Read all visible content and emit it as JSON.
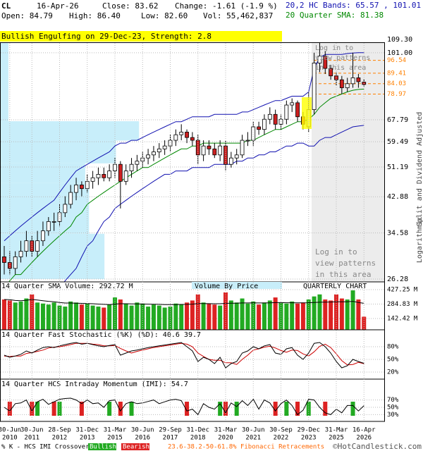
{
  "header": {
    "symbol": "CL",
    "date": "16-Apr-26",
    "close": "Close: 83.62",
    "change": "Change: -1.61 (-1.9 %)",
    "open": "Open: 84.79",
    "high": "High: 86.40",
    "low": "Low: 82.60",
    "volume": "Vol: 55,462,837"
  },
  "chart_data": {
    "type": "candlestick",
    "banner": "Bullish Engulfing on 29-Dec-23, Strength: 2.8",
    "chart_label": "QUARTERLY CHART",
    "side_labels": [
      "Split and Dividend Adjusted",
      "Logarithmic"
    ],
    "login_note": [
      "Log in to",
      "view patterns",
      "in this area"
    ],
    "x_dates": [
      null,
      "30-Jun",
      null,
      null,
      null,
      "30-Jun",
      null,
      null,
      null,
      null,
      "28-Sep",
      null,
      null,
      null,
      null,
      "31-Dec",
      null,
      null,
      null,
      null,
      "31-Mar",
      null,
      null,
      null,
      null,
      "30-Jun",
      null,
      null,
      null,
      null,
      "29-Sep",
      null,
      null,
      null,
      null,
      "31-Dec",
      null,
      null,
      null,
      null,
      "31-Mar",
      null,
      null,
      null,
      null,
      "30-Jun",
      null,
      null,
      null,
      null,
      "30-Sep",
      null,
      null,
      null,
      null,
      "29-Dec",
      null,
      null,
      null,
      null,
      "31-Mar",
      null,
      null,
      null,
      null,
      "16-Apr"
    ],
    "x_years": [
      null,
      "2010",
      null,
      null,
      null,
      "2011",
      null,
      null,
      null,
      null,
      "2012",
      null,
      null,
      null,
      null,
      "2013",
      null,
      null,
      null,
      null,
      "2015",
      null,
      null,
      null,
      null,
      "2016",
      null,
      null,
      null,
      null,
      "2017",
      null,
      null,
      null,
      null,
      "2018",
      null,
      null,
      null,
      null,
      "2020",
      null,
      null,
      null,
      null,
      "2021",
      null,
      null,
      null,
      null,
      "2022",
      null,
      null,
      null,
      null,
      "2023",
      null,
      null,
      null,
      null,
      "2025",
      null,
      null,
      null,
      null,
      "2026"
    ],
    "log_scale": true,
    "grid": true,
    "ylim": [
      26.28,
      109.3
    ],
    "yticks": [
      {
        "value": 109.3,
        "label": "109.30"
      },
      {
        "value": 101,
        "label": "101.00"
      },
      67.79,
      59.49,
      51.19,
      42.88,
      34.58,
      26.28
    ],
    "fibonacci_levels": {
      "color": "#ff8000",
      "values": [
        96.54,
        89.41,
        84.03,
        78.97
      ]
    },
    "candles": {
      "up_color": "#ffffff",
      "down_color": "#cc2020",
      "open": [
        30,
        29,
        28,
        30,
        31,
        33,
        31,
        33,
        35,
        37,
        37,
        39,
        41,
        44,
        46,
        45,
        47,
        48,
        49,
        48,
        50,
        52,
        47,
        50,
        52,
        53,
        54,
        55,
        56,
        57,
        58,
        60,
        62,
        63,
        61,
        60,
        55,
        58,
        57,
        55,
        58,
        52,
        54,
        55,
        60,
        60,
        65,
        64,
        68,
        70,
        66,
        68,
        74,
        75,
        69,
        65,
        72,
        95,
        99,
        92,
        88,
        86,
        82,
        84,
        87,
        84.79
      ],
      "high": [
        32,
        31,
        31,
        33,
        35,
        34,
        35,
        37,
        38,
        39,
        41,
        43,
        46,
        48,
        47,
        49,
        50,
        51,
        51,
        52,
        54,
        53,
        52,
        54,
        55,
        56,
        57,
        58,
        59,
        60,
        62,
        64,
        66,
        64,
        63,
        62,
        60,
        60,
        59,
        60,
        60,
        56,
        57,
        62,
        63,
        67,
        67,
        70,
        73,
        72,
        70,
        76,
        77,
        76,
        71,
        80,
        101,
        109,
        102,
        94,
        90,
        88,
        87,
        101,
        89,
        86.4
      ],
      "low": [
        27,
        27,
        27,
        29,
        30,
        30,
        30,
        32,
        34,
        35,
        36,
        38,
        40,
        42,
        43,
        44,
        45,
        46,
        47,
        47,
        48,
        40,
        46,
        48,
        50,
        51,
        52,
        53,
        54,
        55,
        56,
        58,
        60,
        59,
        58,
        52,
        53,
        55,
        54,
        53,
        50,
        51,
        52,
        54,
        58,
        58,
        62,
        62,
        66,
        64,
        64,
        66,
        71,
        67,
        64,
        63,
        70,
        90,
        89,
        86,
        83,
        79,
        80,
        82,
        82,
        82.6
      ],
      "close": [
        29,
        28,
        30,
        31,
        33,
        31,
        33,
        35,
        37,
        37,
        39,
        41,
        44,
        46,
        45,
        47,
        48,
        49,
        48,
        50,
        52,
        47,
        50,
        52,
        53,
        54,
        55,
        56,
        57,
        58,
        60,
        62,
        63,
        61,
        60,
        55,
        58,
        57,
        55,
        58,
        52,
        54,
        55,
        60,
        60,
        65,
        64,
        68,
        70,
        66,
        68,
        74,
        75,
        69,
        66,
        72,
        95,
        99,
        92,
        88,
        86,
        82,
        84,
        87,
        85,
        83.62
      ]
    },
    "bands": {
      "label": "20,2 HC Bands:",
      "separator": ",",
      "color": "#1010b0",
      "upper": [
        33,
        34,
        35,
        36,
        37,
        38,
        39,
        40,
        41,
        42,
        44,
        46,
        48,
        50,
        51,
        52,
        53,
        54,
        55,
        56,
        58,
        59,
        59,
        60,
        60,
        61,
        62,
        63,
        64,
        65,
        66,
        67,
        67,
        68,
        69,
        69,
        69,
        69,
        70,
        70,
        70,
        70,
        70,
        71,
        71,
        72,
        73,
        74,
        75,
        76,
        76,
        77,
        78,
        78,
        78,
        80,
        92,
        98,
        100,
        100,
        100,
        100,
        100.5,
        100.8,
        101,
        101.01
      ],
      "lower": [
        18,
        18,
        19,
        19,
        20,
        21,
        22,
        22,
        23,
        24,
        25,
        26,
        27,
        28,
        30,
        32,
        33,
        35,
        37,
        38,
        40,
        41,
        42,
        43,
        44,
        45,
        46,
        47,
        48,
        49,
        49,
        50,
        50,
        50,
        51,
        51,
        51,
        51,
        52,
        52,
        52,
        52,
        53,
        53,
        54,
        54,
        55,
        55,
        56,
        56,
        57,
        58,
        58,
        59,
        59,
        58,
        58,
        60,
        61,
        61,
        62,
        63,
        64,
        65,
        65.3,
        65.57
      ]
    },
    "sma": {
      "label": "20 Quarter SMA:",
      "color": "#008800",
      "values": [
        25,
        26,
        27,
        27,
        28,
        29,
        30,
        31,
        32,
        33,
        34,
        35,
        36,
        38,
        39,
        41,
        42,
        43,
        44,
        45,
        46,
        47,
        48,
        49,
        50,
        51,
        51,
        52,
        53,
        54,
        55,
        56,
        57,
        57,
        58,
        58,
        59,
        59,
        59,
        59,
        59,
        59,
        59,
        59,
        60,
        60,
        61,
        62,
        63,
        64,
        64,
        65,
        66,
        67,
        67,
        68,
        70,
        73,
        75,
        77,
        78,
        79,
        80,
        80.8,
        81.2,
        81.38
      ]
    },
    "volume_by_price": {
      "label": "Volume By Price",
      "color": "#c8eefa",
      "xlim": [
        0,
        100
      ],
      "bins": [
        26.28,
        34.4,
        46.5,
        52.3,
        59.9,
        67.2,
        109.3
      ],
      "values": [
        27,
        23,
        22,
        30,
        36,
        2
      ]
    },
    "volume": {
      "label": "14 Quarter SMA Volume:",
      "unit": "M",
      "up_color": "#22aa22",
      "down_color": "#dd2222",
      "sma_color": "#000000",
      "ylim": [
        31,
        427.25
      ],
      "yticks": [
        {
          "value": 427.25,
          "label": "427.25 M"
        },
        {
          "value": 284.83,
          "label": "284.83 M"
        },
        {
          "value": 142.42,
          "label": "142.42 M"
        }
      ],
      "values": [
        330,
        320,
        300,
        310,
        340,
        380,
        300,
        290,
        280,
        300,
        270,
        260,
        310,
        300,
        280,
        290,
        270,
        260,
        250,
        280,
        350,
        330,
        290,
        270,
        300,
        290,
        260,
        280,
        270,
        250,
        260,
        290,
        280,
        300,
        320,
        380,
        300,
        290,
        280,
        270,
        400,
        320,
        300,
        340,
        290,
        310,
        280,
        300,
        320,
        350,
        300,
        290,
        310,
        290,
        300,
        330,
        360,
        380,
        330,
        320,
        380,
        340,
        330,
        420,
        330,
        160
      ],
      "sma": [
        330,
        328,
        320,
        318,
        322,
        330,
        325,
        318,
        312,
        308,
        300,
        295,
        295,
        294,
        292,
        290,
        288,
        285,
        282,
        280,
        285,
        288,
        288,
        287,
        286,
        285,
        284,
        283,
        282,
        280,
        279,
        280,
        281,
        282,
        284,
        290,
        290,
        289,
        288,
        288,
        292,
        294,
        294,
        296,
        296,
        297,
        296,
        296,
        297,
        299,
        299,
        298,
        298,
        297,
        297,
        298,
        300,
        303,
        304,
        305,
        307,
        308,
        308,
        312,
        300,
        292.72
      ]
    },
    "stochastic": {
      "label": "14 Quarter Fast Stochastic (%K) (%D):",
      "k_color": "#000000",
      "d_color": "#cc0000",
      "ylim": [
        0,
        100
      ],
      "yticks": [
        {
          "value": 80,
          "label": "80%"
        },
        {
          "value": 50,
          "label": "50%"
        },
        {
          "value": 20,
          "label": "20%"
        }
      ],
      "k": [
        60,
        55,
        58,
        62,
        70,
        65,
        72,
        78,
        80,
        78,
        82,
        85,
        88,
        90,
        86,
        88,
        85,
        82,
        80,
        83,
        85,
        60,
        65,
        70,
        72,
        75,
        78,
        80,
        82,
        84,
        86,
        88,
        90,
        80,
        70,
        45,
        55,
        50,
        40,
        55,
        30,
        40,
        45,
        65,
        70,
        80,
        75,
        82,
        85,
        65,
        62,
        75,
        78,
        60,
        50,
        65,
        88,
        90,
        80,
        65,
        45,
        30,
        35,
        50,
        45,
        40.6
      ],
      "d": [
        58,
        57,
        58,
        58,
        64,
        66,
        69,
        72,
        77,
        79,
        80,
        82,
        85,
        88,
        88,
        88,
        86,
        85,
        82,
        82,
        83,
        76,
        70,
        65,
        69,
        72,
        75,
        78,
        80,
        82,
        84,
        86,
        88,
        86,
        80,
        65,
        57,
        50,
        48,
        48,
        42,
        42,
        38,
        50,
        60,
        72,
        75,
        79,
        81,
        77,
        71,
        67,
        72,
        71,
        63,
        58,
        68,
        81,
        86,
        78,
        63,
        47,
        37,
        38,
        43,
        39.7
      ]
    },
    "imi": {
      "label": "14 Quarter HCS Intraday Momentum (IMI):",
      "color": "#000000",
      "ylim": [
        0,
        100
      ],
      "yticks": [
        {
          "value": 70,
          "label": "70%"
        },
        {
          "value": 50,
          "label": "50%"
        },
        {
          "value": 30,
          "label": "30%"
        }
      ],
      "values": [
        50,
        40,
        60,
        62,
        70,
        40,
        65,
        72,
        58,
        65,
        72,
        74,
        75,
        70,
        60,
        70,
        60,
        62,
        50,
        68,
        70,
        40,
        60,
        65,
        60,
        62,
        66,
        70,
        60,
        65,
        70,
        72,
        68,
        40,
        45,
        30,
        60,
        50,
        45,
        60,
        35,
        62,
        52,
        68,
        55,
        72,
        45,
        70,
        62,
        40,
        60,
        70,
        55,
        30,
        42,
        72,
        70,
        50,
        35,
        30,
        45,
        35,
        55,
        55,
        40,
        54.7
      ]
    },
    "footer": {
      "legend": "% K - HCS IMI Crossover,",
      "bullish": "Bullish",
      "bearish": "Bearish",
      "fibonacci": "23.6-38.2-50-61.8% Fibonacci Retracements",
      "credit": "©HotCandlestick.com"
    }
  }
}
